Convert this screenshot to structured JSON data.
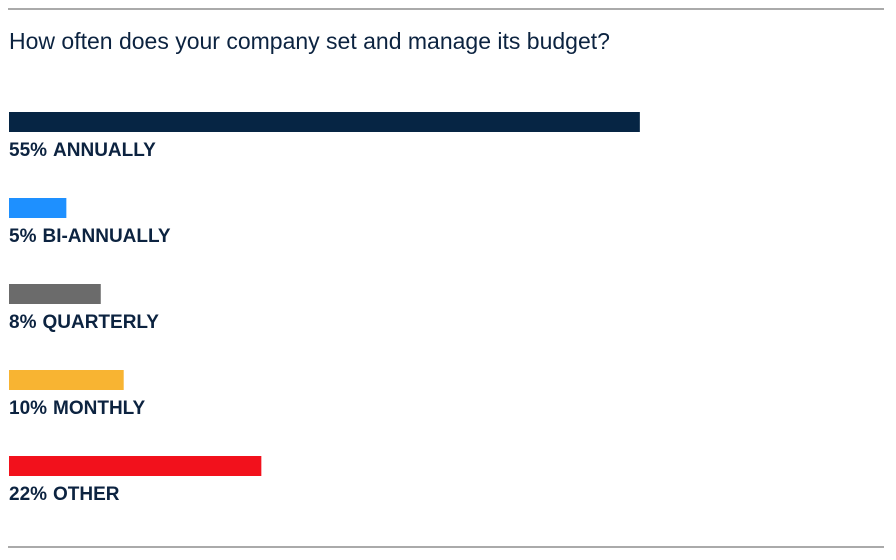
{
  "chart_data": {
    "type": "bar",
    "orientation": "horizontal",
    "title": "How often does your company set and manage its budget?",
    "categories": [
      "ANNUALLY",
      "BI-ANNUALLY",
      "QUARTERLY",
      "MONTHLY",
      "OTHER"
    ],
    "values": [
      55,
      5,
      8,
      10,
      22
    ],
    "value_labels": [
      "55%",
      "5%",
      "8%",
      "10%",
      "22%"
    ],
    "colors": [
      "#062544",
      "#1e90ff",
      "#6b6b6b",
      "#f8b432",
      "#f2111c"
    ]
  }
}
